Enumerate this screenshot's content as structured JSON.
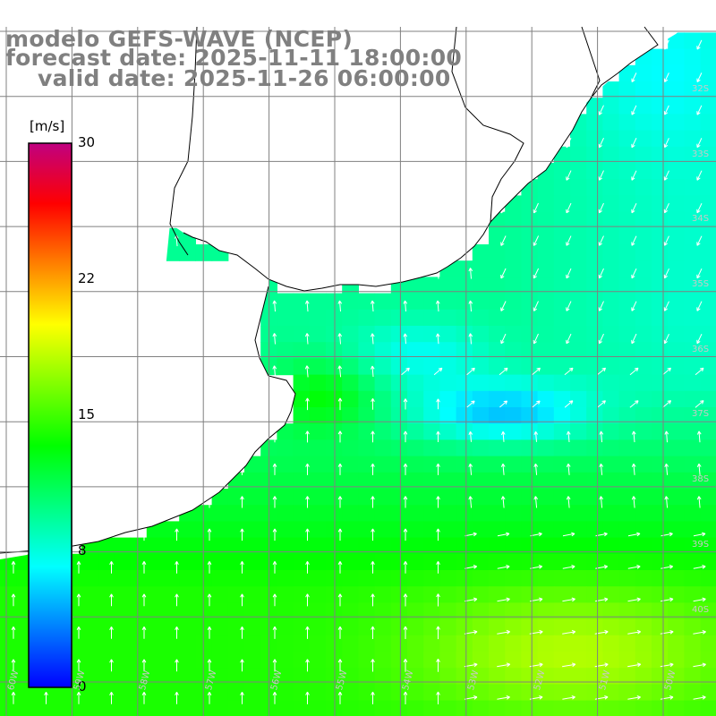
{
  "header": {
    "model": "modelo GEFS-WAVE (NCEP)",
    "forecast": "forecast date: 2025-11-11 18:00:00",
    "valid": "valid date: 2025-11-26 06:00:00"
  },
  "colorbar": {
    "unit": "[m/s]",
    "ticks": [
      {
        "value": 30,
        "label": "30"
      },
      {
        "value": 22,
        "label": "22"
      },
      {
        "value": 15,
        "label": "15"
      },
      {
        "value": 8,
        "label": "8"
      },
      {
        "value": 0,
        "label": "0"
      }
    ],
    "colors": [
      "#0000ff",
      "#0080ff",
      "#00ffff",
      "#00ff80",
      "#00ff00",
      "#80ff00",
      "#ffff00",
      "#ff8000",
      "#ff0000",
      "#c00080"
    ]
  },
  "lat_labels": [
    "32S",
    "33S",
    "34S",
    "35S",
    "36S",
    "37S",
    "38S",
    "39S",
    "40S"
  ],
  "lon_labels": [
    "60W",
    "59W",
    "58W",
    "57W",
    "56W",
    "55W",
    "54W",
    "53W",
    "52W",
    "51W",
    "50W"
  ],
  "field": {
    "variable": "wind speed",
    "units": "m/s",
    "land_color": "#ffffff",
    "coastline_color": "#000000"
  }
}
